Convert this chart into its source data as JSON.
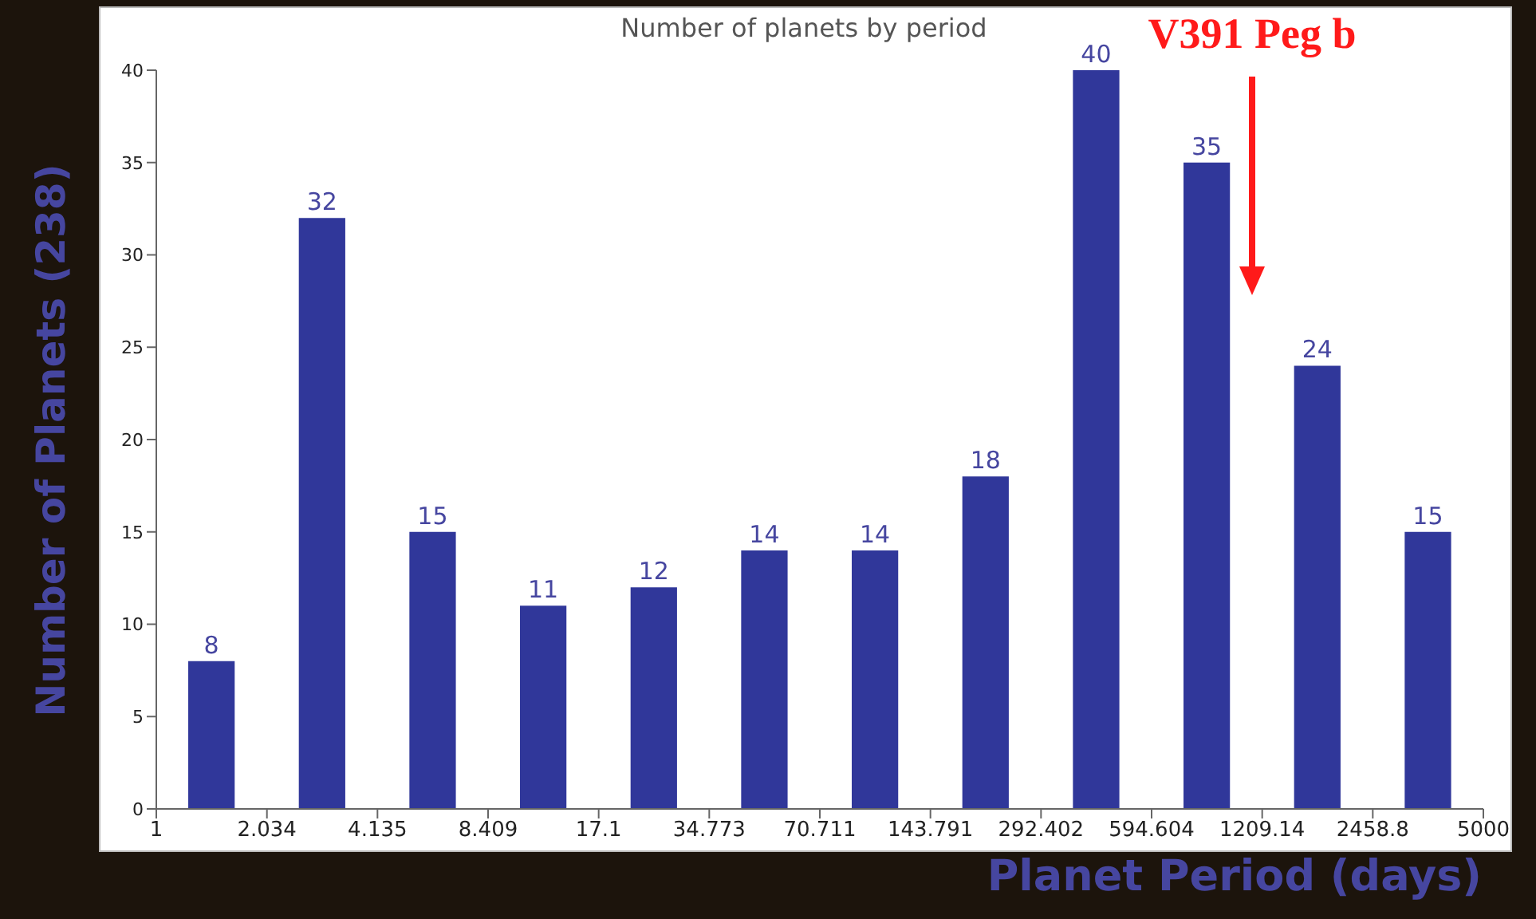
{
  "chart_data": {
    "type": "histogram",
    "title": "Number of planets by period",
    "xlabel": "Planet Period (days)",
    "ylabel": "Number of Planets (238)",
    "bins": [
      1,
      2.034,
      4.135,
      8.409,
      17.1,
      34.773,
      70.711,
      143.791,
      292.402,
      594.604,
      1209.14,
      2458.8,
      5000
    ],
    "values": [
      8,
      32,
      15,
      11,
      12,
      14,
      14,
      18,
      40,
      35,
      24,
      15
    ],
    "color": "#30379a",
    "log": "x",
    "xlim": [
      1,
      5000
    ],
    "xticks": [
      1,
      2.034,
      4.135,
      8.409,
      17.1,
      34.773,
      70.711,
      143.791,
      292.402,
      594.604,
      1209.14,
      2458.8,
      5000
    ],
    "ylim": [
      0,
      40
    ],
    "yticks": [
      0,
      5,
      10,
      15,
      20,
      25,
      30,
      35,
      40
    ],
    "data_labels": true,
    "grid": false,
    "annotations": [
      "V391 Peg b"
    ]
  }
}
